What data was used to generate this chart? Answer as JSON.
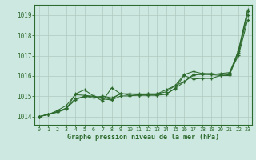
{
  "title": "Graphe pression niveau de la mer (hPa)",
  "bg_color": "#cce8e0",
  "line_color": "#2d6a2d",
  "grid_color": "#b0c8c0",
  "xlim": [
    -0.5,
    23.5
  ],
  "ylim": [
    1013.6,
    1019.5
  ],
  "yticks": [
    1014,
    1015,
    1016,
    1017,
    1018,
    1019
  ],
  "xticks": [
    0,
    1,
    2,
    3,
    4,
    5,
    6,
    7,
    8,
    9,
    10,
    11,
    12,
    13,
    14,
    15,
    16,
    17,
    18,
    19,
    20,
    21,
    22,
    23
  ],
  "series": [
    [
      1014.0,
      1014.1,
      1014.3,
      1014.55,
      1015.08,
      1015.05,
      1015.0,
      1014.95,
      1014.85,
      1015.15,
      1015.05,
      1015.05,
      1015.05,
      1015.05,
      1015.1,
      1015.4,
      1016.02,
      1015.85,
      1015.88,
      1015.88,
      1016.02,
      1016.02,
      1017.3,
      1019.25
    ],
    [
      1014.0,
      1014.12,
      1014.25,
      1014.42,
      1014.9,
      1014.97,
      1015.02,
      1014.87,
      1014.82,
      1015.02,
      1015.02,
      1015.07,
      1015.07,
      1015.07,
      1015.12,
      1015.37,
      1015.72,
      1016.07,
      1016.07,
      1016.07,
      1016.02,
      1016.07,
      1017.15,
      1019.0
    ],
    [
      1014.0,
      1014.12,
      1014.22,
      1014.37,
      1015.12,
      1015.32,
      1015.02,
      1014.77,
      1015.42,
      1015.12,
      1015.12,
      1015.07,
      1015.12,
      1015.12,
      1015.22,
      1015.52,
      1016.07,
      1016.22,
      1016.12,
      1016.12,
      1016.07,
      1016.12,
      1017.02,
      1018.75
    ],
    [
      1014.0,
      1014.12,
      1014.22,
      1014.42,
      1014.82,
      1015.02,
      1014.92,
      1015.02,
      1014.92,
      1015.12,
      1015.12,
      1015.12,
      1015.12,
      1015.12,
      1015.32,
      1015.52,
      1015.72,
      1016.02,
      1016.12,
      1016.07,
      1016.12,
      1016.17,
      1017.22,
      1019.18
    ]
  ]
}
